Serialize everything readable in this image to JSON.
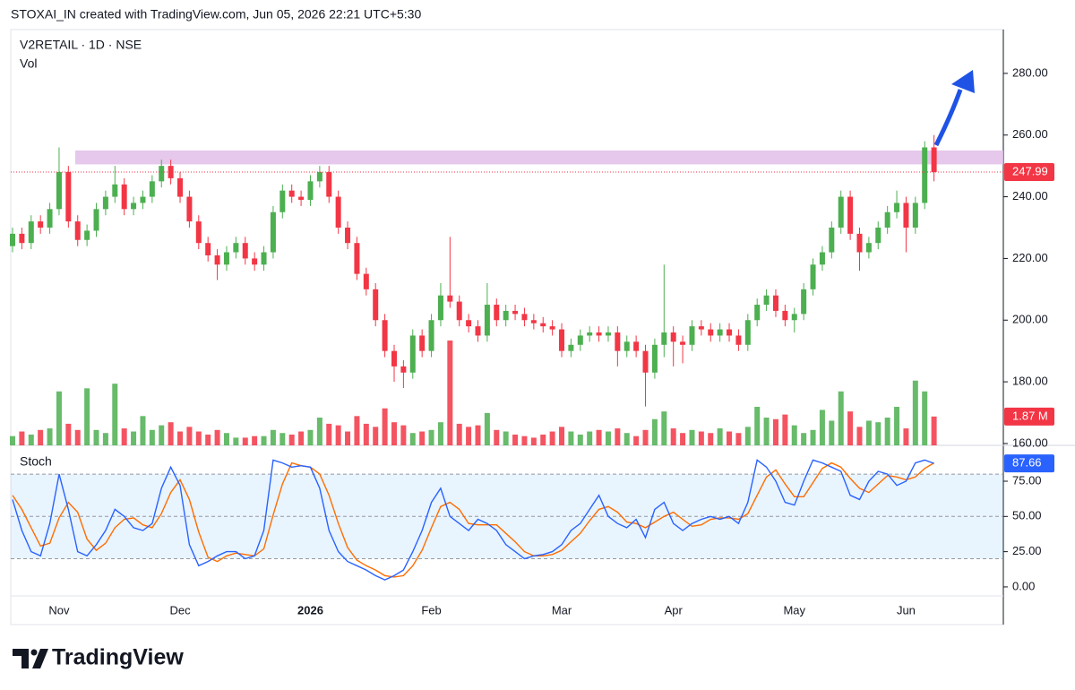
{
  "header": {
    "text": "STOXAI_IN created with TradingView.com, Jun 05, 2026 22:21 UTC+5:30"
  },
  "footer": {
    "brand": "TradingView"
  },
  "chart_data": [
    {
      "type": "candlestick",
      "title": "V2RETAIL · 1D · NSE",
      "open": [
        224,
        228,
        225,
        232,
        230,
        236,
        248,
        232,
        226,
        229,
        236,
        240,
        244,
        236,
        238,
        240,
        245,
        250,
        246,
        240,
        232,
        225,
        221,
        218,
        222,
        225,
        220,
        218,
        222,
        235,
        242,
        240,
        239,
        245,
        248,
        240,
        230,
        225,
        215,
        210,
        200,
        190,
        185,
        183,
        195,
        190,
        200,
        208,
        206,
        200,
        198,
        195,
        205,
        200,
        203,
        202,
        200,
        199,
        198,
        197,
        190,
        192,
        195,
        196,
        195,
        196,
        190,
        193,
        190,
        183,
        192,
        196,
        193,
        192,
        198,
        197,
        195,
        197,
        195,
        192,
        200,
        205,
        208,
        203,
        200,
        202,
        210,
        218,
        222,
        230,
        240,
        228,
        222,
        225,
        230,
        235,
        238,
        230,
        238,
        256
      ],
      "high": [
        230,
        230,
        234,
        234,
        238,
        256,
        250,
        234,
        231,
        238,
        242,
        250,
        246,
        240,
        242,
        247,
        252,
        252,
        248,
        242,
        234,
        227,
        223,
        224,
        227,
        227,
        222,
        224,
        237,
        244,
        244,
        242,
        247,
        250,
        250,
        242,
        232,
        227,
        217,
        212,
        202,
        192,
        187,
        197,
        197,
        202,
        212,
        227,
        208,
        202,
        200,
        212,
        207,
        205,
        205,
        204,
        202,
        201,
        200,
        199,
        194,
        197,
        198,
        198,
        198,
        198,
        195,
        195,
        192,
        194,
        218,
        198,
        195,
        200,
        200,
        199,
        199,
        199,
        197,
        202,
        207,
        210,
        210,
        205,
        204,
        212,
        220,
        224,
        232,
        242,
        242,
        230,
        227,
        232,
        237,
        242,
        240,
        240,
        258,
        260
      ],
      "low": [
        222,
        223,
        223,
        228,
        228,
        234,
        230,
        224,
        224,
        227,
        234,
        238,
        234,
        234,
        236,
        238,
        243,
        244,
        238,
        230,
        223,
        219,
        213,
        216,
        220,
        218,
        216,
        216,
        220,
        233,
        238,
        237,
        237,
        243,
        238,
        228,
        223,
        213,
        208,
        198,
        188,
        180,
        178,
        181,
        188,
        188,
        198,
        204,
        198,
        196,
        193,
        193,
        198,
        198,
        200,
        198,
        197,
        196,
        195,
        188,
        188,
        190,
        193,
        193,
        193,
        185,
        188,
        188,
        172,
        181,
        188,
        185,
        186,
        190,
        195,
        193,
        193,
        193,
        190,
        190,
        198,
        203,
        201,
        198,
        196,
        200,
        208,
        216,
        220,
        228,
        226,
        216,
        220,
        223,
        228,
        233,
        222,
        228,
        236,
        245
      ],
      "close": [
        228,
        225,
        232,
        230,
        236,
        248,
        232,
        226,
        229,
        236,
        240,
        244,
        236,
        238,
        240,
        245,
        250,
        246,
        240,
        232,
        225,
        221,
        218,
        222,
        225,
        220,
        218,
        222,
        235,
        242,
        240,
        239,
        245,
        248,
        240,
        230,
        225,
        215,
        210,
        200,
        190,
        185,
        183,
        195,
        190,
        200,
        208,
        206,
        200,
        198,
        195,
        205,
        200,
        203,
        202,
        200,
        199,
        198,
        197,
        190,
        192,
        195,
        196,
        195,
        196,
        190,
        193,
        190,
        183,
        192,
        196,
        193,
        192,
        198,
        197,
        195,
        197,
        195,
        192,
        200,
        205,
        208,
        203,
        200,
        202,
        210,
        218,
        222,
        230,
        240,
        228,
        222,
        225,
        230,
        235,
        238,
        230,
        238,
        256,
        247.99
      ],
      "up_color": "#4caf50",
      "down_color": "#f23645",
      "ylim": [
        159.4,
        294.2
      ],
      "yticks": [
        {
          "value": 160,
          "label": "160.00"
        },
        {
          "value": 180,
          "label": "180.00"
        },
        {
          "value": 200,
          "label": "200.00"
        },
        {
          "value": 220,
          "label": "220.00"
        },
        {
          "value": 240,
          "label": "240.00"
        },
        {
          "value": 260,
          "label": "260.00"
        },
        {
          "value": 280,
          "label": "280.00"
        }
      ],
      "xticks": [
        {
          "value": 5,
          "label": "Nov"
        },
        {
          "value": 18,
          "label": "Dec"
        },
        {
          "value": 32,
          "label": "2026"
        },
        {
          "value": 45,
          "label": "Feb"
        },
        {
          "value": 59,
          "label": "Mar"
        },
        {
          "value": 71,
          "label": "Apr"
        },
        {
          "value": 84,
          "label": "May"
        },
        {
          "value": 96,
          "label": "Jun"
        }
      ],
      "resistance_zone": [
        250.5,
        255
      ],
      "zone_color": "#e1bee7"
    },
    {
      "type": "volume",
      "title": "Vol",
      "values": [
        0.6,
        0.9,
        0.7,
        1.0,
        1.1,
        3.5,
        1.4,
        1.0,
        3.7,
        1.0,
        0.8,
        4.0,
        1.1,
        0.9,
        1.9,
        1.0,
        1.3,
        1.5,
        0.9,
        1.2,
        0.9,
        0.7,
        1.0,
        0.8,
        0.5,
        0.5,
        0.6,
        0.6,
        1.0,
        0.8,
        0.7,
        0.9,
        1.0,
        1.8,
        1.4,
        1.3,
        0.9,
        1.9,
        1.4,
        1.2,
        2.4,
        1.5,
        1.3,
        0.8,
        0.9,
        1.0,
        1.5,
        6.8,
        1.4,
        1.2,
        1.3,
        2.1,
        1.0,
        0.9,
        0.7,
        0.6,
        0.5,
        0.7,
        0.9,
        1.2,
        0.9,
        0.7,
        0.9,
        1.0,
        0.9,
        1.1,
        0.8,
        0.6,
        1.0,
        1.7,
        2.2,
        1.1,
        0.8,
        1.0,
        0.9,
        0.8,
        1.1,
        0.9,
        0.8,
        1.2,
        2.5,
        1.8,
        1.7,
        2.0,
        1.3,
        0.8,
        1.0,
        2.3,
        1.6,
        3.5,
        2.2,
        1.2,
        1.6,
        1.5,
        1.8,
        2.5,
        1.1,
        4.2,
        3.5,
        1.87
      ],
      "value_labels": [
        null,
        null,
        null,
        null,
        null,
        null,
        null,
        null,
        null,
        null,
        null,
        null,
        null,
        null,
        null,
        null,
        null,
        null,
        null,
        null,
        null,
        null,
        null,
        null,
        null,
        null,
        null,
        null,
        null,
        null,
        null,
        null,
        null,
        null,
        null,
        null,
        null,
        null,
        null,
        null,
        null,
        null,
        null,
        null,
        null,
        null,
        null,
        null,
        null,
        null,
        null,
        null,
        null,
        null,
        null,
        null,
        null,
        null,
        null,
        null,
        null,
        null,
        null,
        null,
        null,
        null,
        null,
        null,
        null,
        null,
        null,
        null,
        null,
        null,
        null,
        null,
        null,
        null,
        null,
        null,
        null,
        null,
        null,
        null,
        null,
        null,
        null,
        null,
        null,
        null,
        null,
        null,
        null,
        null,
        null,
        null,
        null,
        null,
        null,
        "1.87 M"
      ]
    },
    {
      "type": "stochastic",
      "title": "Stoch",
      "series": [
        {
          "color": "#2962ff",
          "values": [
            62,
            40,
            25,
            22,
            45,
            80,
            55,
            25,
            22,
            30,
            40,
            55,
            50,
            42,
            40,
            45,
            70,
            85,
            72,
            30,
            15,
            18,
            22,
            25,
            25,
            20,
            22,
            40,
            90,
            88,
            85,
            86,
            85,
            70,
            40,
            25,
            18,
            15,
            12,
            8,
            5,
            8,
            12,
            25,
            40,
            60,
            70,
            50,
            45,
            40,
            48,
            45,
            40,
            30,
            25,
            20,
            22,
            23,
            25,
            30,
            40,
            45,
            55,
            65,
            50,
            45,
            42,
            48,
            35,
            55,
            60,
            45,
            40,
            45,
            48,
            50,
            48,
            50,
            45,
            60,
            90,
            85,
            75,
            60,
            58,
            75,
            90,
            88,
            85,
            82,
            65,
            62,
            75,
            82,
            80,
            72,
            75,
            88,
            90,
            87.66
          ]
        },
        {
          "color": "#ff6d00",
          "values": [
            65,
            55,
            42,
            29,
            31,
            49,
            60,
            53,
            34,
            26,
            31,
            42,
            48,
            49,
            44,
            42,
            52,
            67,
            76,
            62,
            39,
            21,
            18,
            22,
            24,
            23,
            22,
            27,
            51,
            73,
            88,
            86,
            85,
            80,
            65,
            45,
            28,
            19,
            15,
            12,
            8,
            7,
            8,
            15,
            26,
            42,
            57,
            60,
            55,
            45,
            44,
            44,
            44,
            38,
            32,
            25,
            22,
            22,
            23,
            26,
            32,
            38,
            47,
            55,
            57,
            53,
            46,
            45,
            42,
            46,
            50,
            53,
            48,
            43,
            44,
            48,
            49,
            49,
            48,
            52,
            65,
            78,
            83,
            73,
            64,
            64,
            74,
            84,
            88,
            85,
            77,
            70,
            67,
            73,
            79,
            78,
            76,
            78,
            84,
            88
          ]
        }
      ],
      "ylim": [
        -6.4,
        99.8
      ],
      "yticks": [
        {
          "value": 0,
          "label": "0.00"
        },
        {
          "value": 25,
          "label": "25.00"
        },
        {
          "value": 50,
          "label": "50.00"
        },
        {
          "value": 75,
          "label": "75.00"
        }
      ],
      "band": [
        20,
        80
      ],
      "hlines": [
        80,
        50,
        20
      ]
    }
  ]
}
